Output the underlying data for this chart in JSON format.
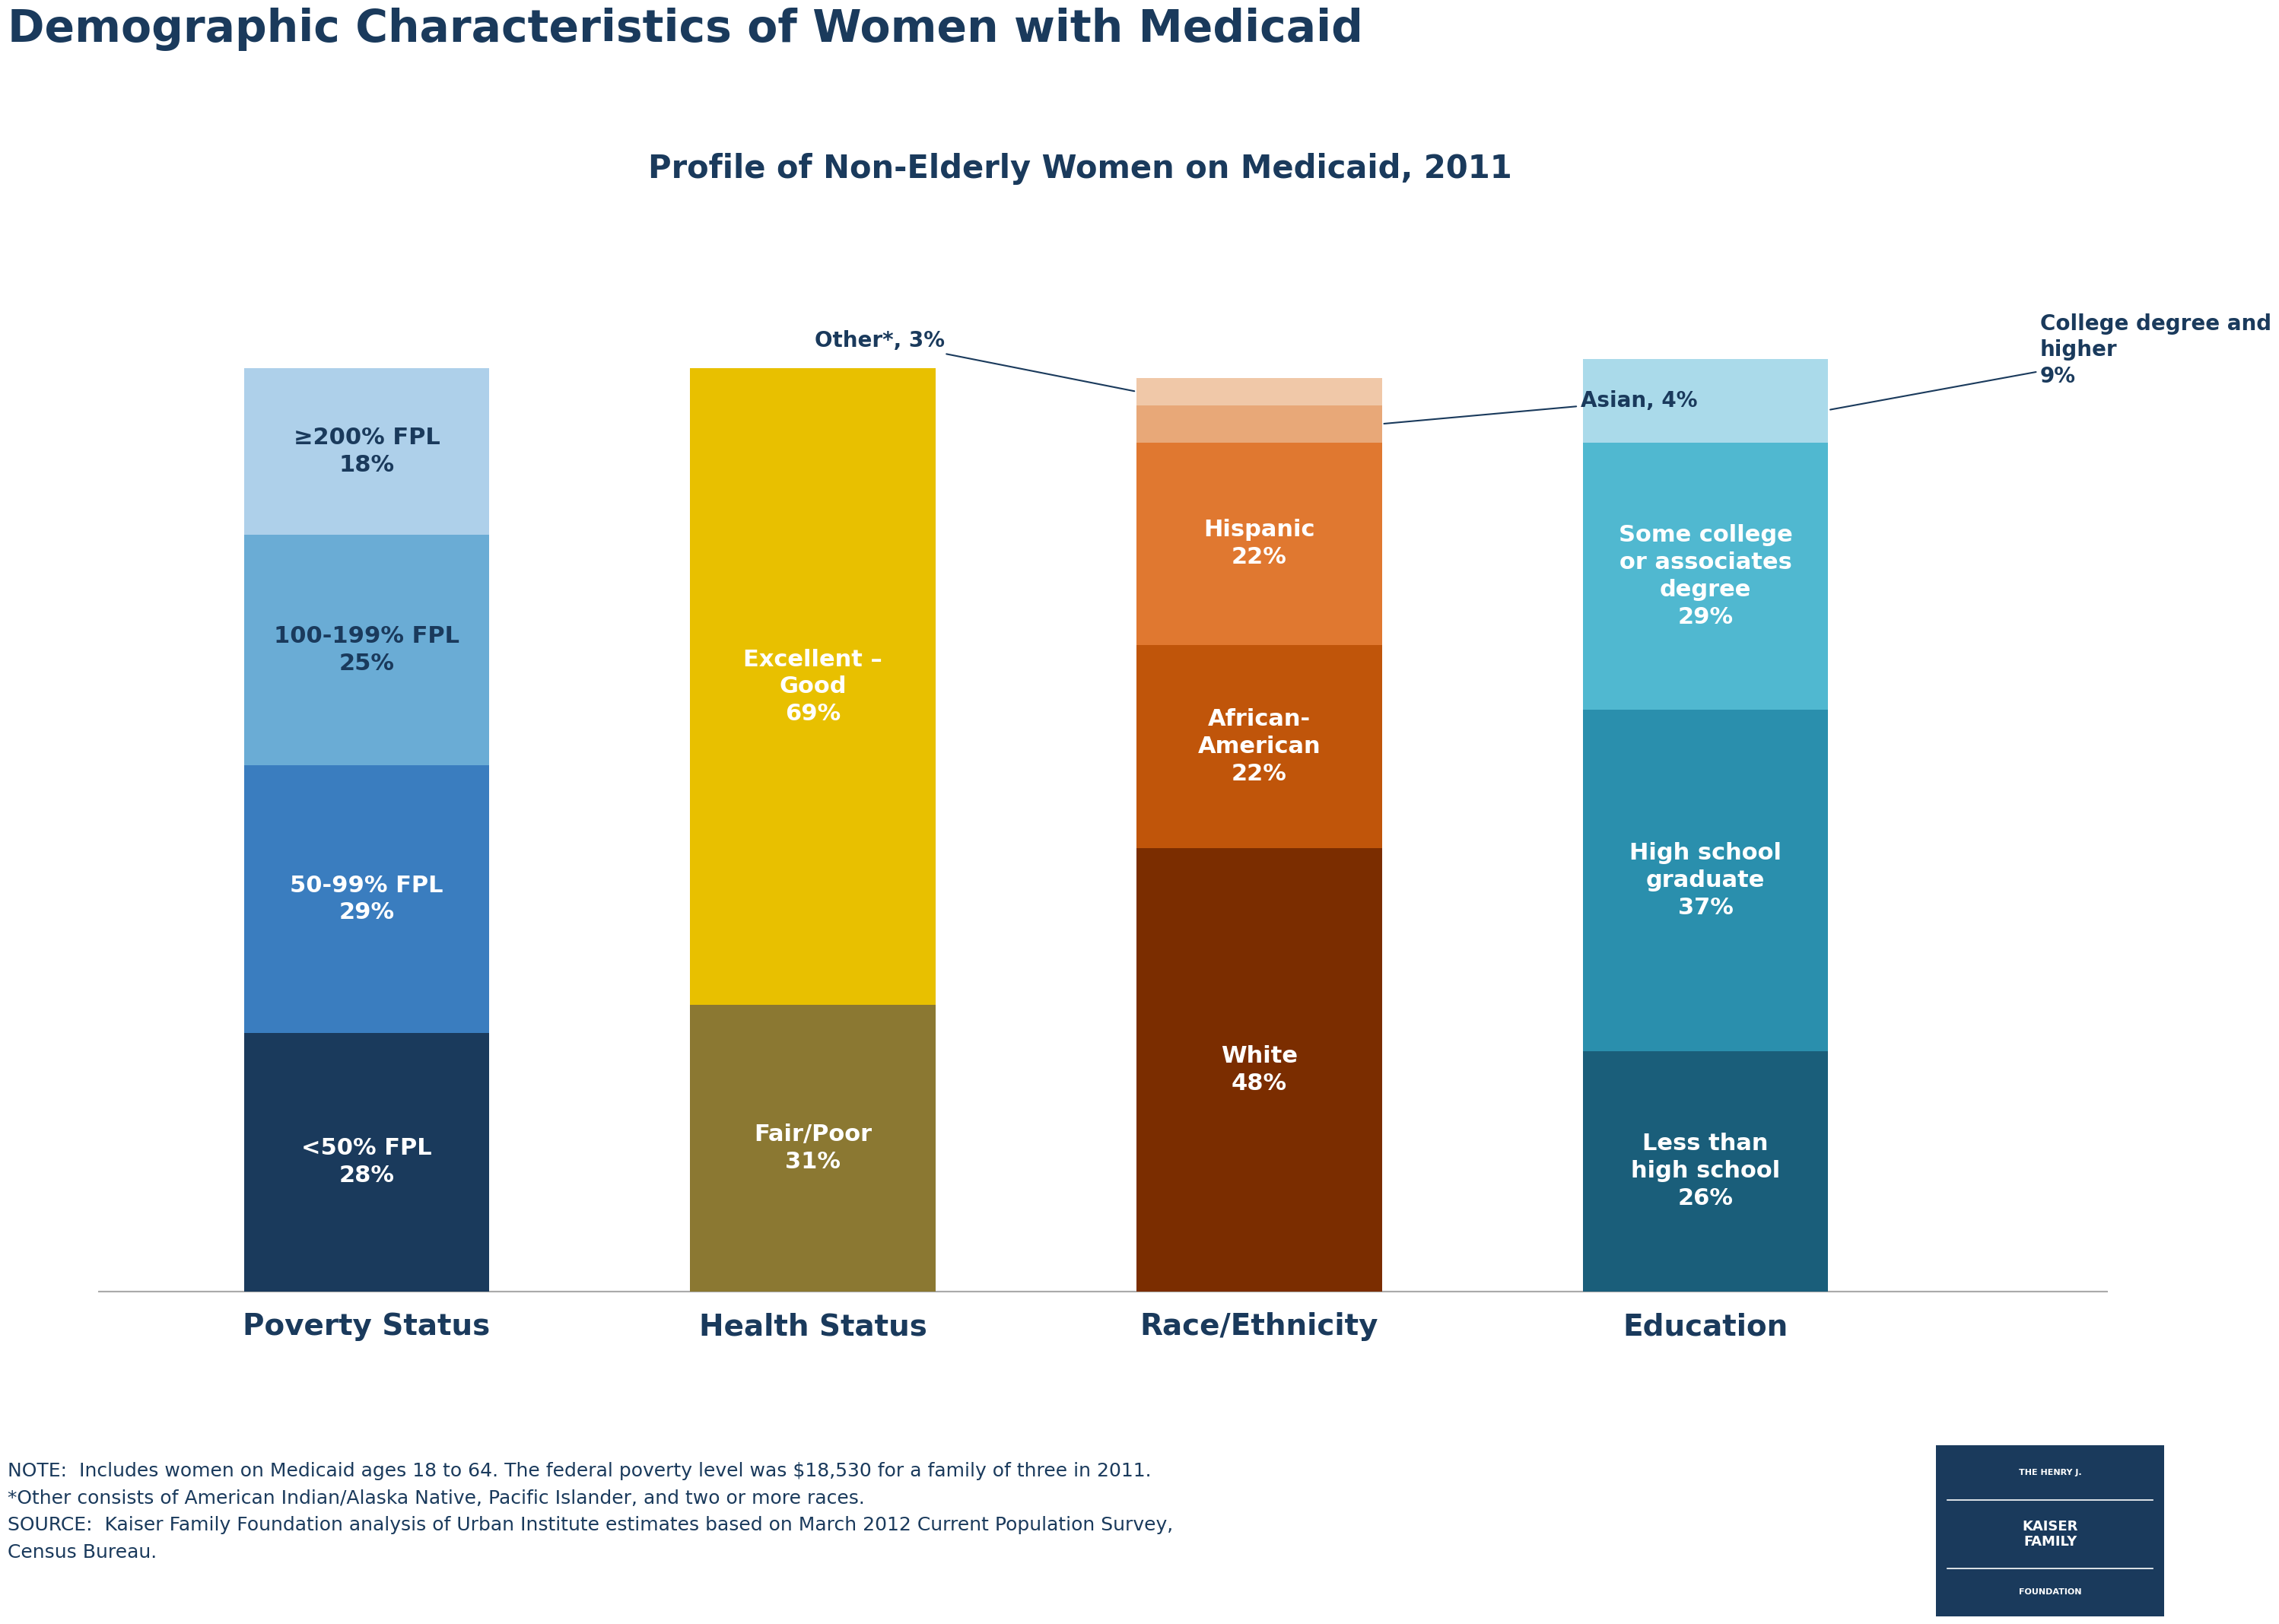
{
  "title": "Demographic Characteristics of Women with Medicaid",
  "subtitle": "Profile of Non-Elderly Women on Medicaid, 2011",
  "title_color": "#1a3a5c",
  "subtitle_color": "#1a3a5c",
  "bars": {
    "Poverty Status": {
      "segments": [
        {
          "label": "<50% FPL\n28%",
          "value": 28,
          "color": "#1a3a5c",
          "text_color": "white"
        },
        {
          "label": "50-99% FPL\n29%",
          "value": 29,
          "color": "#3a7dbf",
          "text_color": "white"
        },
        {
          "label": "100-199% FPL\n25%",
          "value": 25,
          "color": "#6aacd5",
          "text_color": "#1a3a5c"
        },
        {
          "label": "≥200% FPL\n18%",
          "value": 18,
          "color": "#aed0ea",
          "text_color": "#1a3a5c"
        }
      ]
    },
    "Health Status": {
      "segments": [
        {
          "label": "Fair/Poor\n31%",
          "value": 31,
          "color": "#8b7832",
          "text_color": "white"
        },
        {
          "label": "Excellent –\nGood\n69%",
          "value": 69,
          "color": "#e8c000",
          "text_color": "white"
        }
      ]
    },
    "Race/Ethnicity": {
      "segments": [
        {
          "label": "White\n48%",
          "value": 48,
          "color": "#7b2d00",
          "text_color": "white"
        },
        {
          "label": "African-\nAmerican\n22%",
          "value": 22,
          "color": "#c0550a",
          "text_color": "white"
        },
        {
          "label": "Hispanic\n22%",
          "value": 22,
          "color": "#e07830",
          "text_color": "white"
        },
        {
          "label": "Asian, 4%",
          "value": 4,
          "color": "#e8a878",
          "text_color": "outside"
        },
        {
          "label": "Other*, 3%",
          "value": 3,
          "color": "#f0c8a8",
          "text_color": "outside"
        }
      ]
    },
    "Education": {
      "segments": [
        {
          "label": "Less than\nhigh school\n26%",
          "value": 26,
          "color": "#1a5e7a",
          "text_color": "white"
        },
        {
          "label": "High school\ngraduate\n37%",
          "value": 37,
          "color": "#2a8fad",
          "text_color": "white"
        },
        {
          "label": "Some college\nor associates\ndegree\n29%",
          "value": 29,
          "color": "#50b8d0",
          "text_color": "white"
        },
        {
          "label": "College degree and\nhigher\n9%",
          "value": 9,
          "color": "#aadaea",
          "text_color": "outside"
        }
      ]
    }
  },
  "bar_order": [
    "Poverty Status",
    "Health Status",
    "Race/Ethnicity",
    "Education"
  ],
  "xlabel_color": "#1a3a5c",
  "note_text": "NOTE:  Includes women on Medicaid ages 18 to 64. The federal poverty level was $18,530 for a family of three in 2011.\n*Other consists of American Indian/Alaska Native, Pacific Islander, and two or more races.\nSOURCE:  Kaiser Family Foundation analysis of Urban Institute estimates based on March 2012 Current Population Survey,\nCensus Bureau.",
  "background_color": "#ffffff"
}
